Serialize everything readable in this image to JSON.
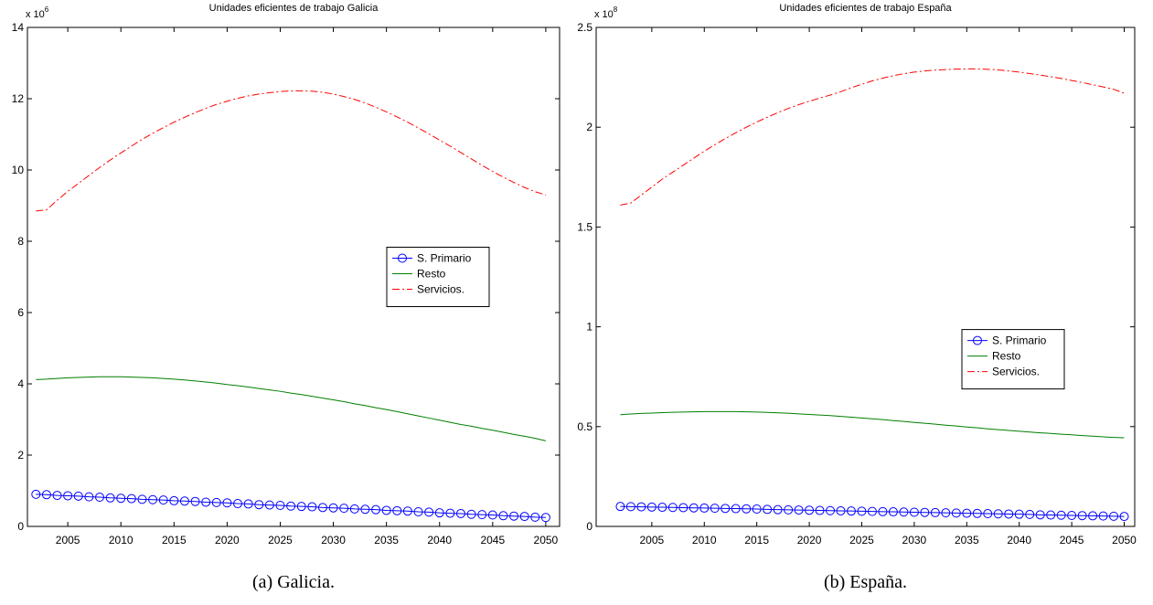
{
  "chart_data": [
    {
      "type": "line",
      "title": "Unidades eficientes de trabajo Galicia",
      "caption": "(a) Galicia.",
      "scale_base": "x 10",
      "scale_exponent": "6",
      "x": [
        2002,
        2003,
        2004,
        2005,
        2006,
        2007,
        2008,
        2009,
        2010,
        2011,
        2012,
        2013,
        2014,
        2015,
        2016,
        2017,
        2018,
        2019,
        2020,
        2021,
        2022,
        2023,
        2024,
        2025,
        2026,
        2027,
        2028,
        2029,
        2030,
        2031,
        2032,
        2033,
        2034,
        2035,
        2036,
        2037,
        2038,
        2039,
        2040,
        2041,
        2042,
        2043,
        2044,
        2045,
        2046,
        2047,
        2048,
        2049,
        2050
      ],
      "xlim": [
        2001.2,
        2051.3
      ],
      "xticks": [
        2005,
        2010,
        2015,
        2020,
        2025,
        2030,
        2035,
        2040,
        2045,
        2050
      ],
      "ylim": [
        0,
        14
      ],
      "yticks": [
        0,
        2,
        4,
        6,
        8,
        10,
        12,
        14
      ],
      "legend_position": "center right",
      "series": [
        {
          "name": "S. Primario",
          "color": "#0000ff",
          "marker": "o",
          "line_style": "solid",
          "values": [
            0.9,
            0.89,
            0.87,
            0.86,
            0.85,
            0.83,
            0.82,
            0.8,
            0.79,
            0.78,
            0.76,
            0.75,
            0.74,
            0.72,
            0.71,
            0.7,
            0.68,
            0.67,
            0.66,
            0.64,
            0.63,
            0.61,
            0.6,
            0.59,
            0.57,
            0.56,
            0.55,
            0.53,
            0.52,
            0.51,
            0.49,
            0.48,
            0.47,
            0.45,
            0.44,
            0.43,
            0.41,
            0.4,
            0.38,
            0.37,
            0.36,
            0.34,
            0.33,
            0.32,
            0.3,
            0.29,
            0.28,
            0.26,
            0.25
          ]
        },
        {
          "name": "Resto",
          "color": "#007f00",
          "marker": "none",
          "line_style": "solid",
          "values": [
            4.12,
            4.13,
            4.15,
            4.17,
            4.18,
            4.19,
            4.2,
            4.2,
            4.2,
            4.19,
            4.18,
            4.17,
            4.15,
            4.13,
            4.11,
            4.08,
            4.05,
            4.02,
            3.98,
            3.95,
            3.91,
            3.87,
            3.83,
            3.79,
            3.74,
            3.7,
            3.65,
            3.6,
            3.55,
            3.5,
            3.44,
            3.39,
            3.33,
            3.28,
            3.22,
            3.16,
            3.1,
            3.04,
            2.98,
            2.92,
            2.86,
            2.81,
            2.75,
            2.7,
            2.64,
            2.58,
            2.53,
            2.47,
            2.4
          ]
        },
        {
          "name": "Servicios.",
          "color": "#ff0000",
          "marker": "none",
          "line_style": "dash-dot",
          "values": [
            8.85,
            8.88,
            9.15,
            9.4,
            9.62,
            9.85,
            10.07,
            10.28,
            10.48,
            10.67,
            10.86,
            11.03,
            11.19,
            11.34,
            11.48,
            11.61,
            11.73,
            11.84,
            11.93,
            12.01,
            12.08,
            12.13,
            12.17,
            12.2,
            12.22,
            12.22,
            12.21,
            12.18,
            12.13,
            12.06,
            11.98,
            11.88,
            11.76,
            11.63,
            11.49,
            11.34,
            11.18,
            11.01,
            10.84,
            10.67,
            10.49,
            10.31,
            10.13,
            9.96,
            9.8,
            9.65,
            9.51,
            9.39,
            9.3
          ]
        }
      ]
    },
    {
      "type": "line",
      "title": "Unidades eficientes de trabajo España",
      "caption": "(b) España.",
      "scale_base": "x 10",
      "scale_exponent": "8",
      "x": [
        2002,
        2003,
        2004,
        2005,
        2006,
        2007,
        2008,
        2009,
        2010,
        2011,
        2012,
        2013,
        2014,
        2015,
        2016,
        2017,
        2018,
        2019,
        2020,
        2021,
        2022,
        2023,
        2024,
        2025,
        2026,
        2027,
        2028,
        2029,
        2030,
        2031,
        2032,
        2033,
        2034,
        2035,
        2036,
        2037,
        2038,
        2039,
        2040,
        2041,
        2042,
        2043,
        2044,
        2045,
        2046,
        2047,
        2048,
        2049,
        2050
      ],
      "xlim": [
        1999.7,
        2051
      ],
      "xticks": [
        2005,
        2010,
        2015,
        2020,
        2025,
        2030,
        2035,
        2040,
        2045,
        2050
      ],
      "ylim": [
        0,
        2.5
      ],
      "yticks": [
        0,
        0.5,
        1,
        1.5,
        2,
        2.5
      ],
      "legend_position": "lower right",
      "series": [
        {
          "name": "S. Primario",
          "color": "#0000ff",
          "marker": "o",
          "line_style": "solid",
          "values": [
            0.1,
            0.099,
            0.098,
            0.097,
            0.096,
            0.095,
            0.094,
            0.093,
            0.092,
            0.091,
            0.09,
            0.089,
            0.088,
            0.087,
            0.085,
            0.084,
            0.083,
            0.082,
            0.081,
            0.08,
            0.079,
            0.078,
            0.077,
            0.076,
            0.075,
            0.074,
            0.073,
            0.072,
            0.071,
            0.07,
            0.069,
            0.068,
            0.067,
            0.066,
            0.065,
            0.064,
            0.063,
            0.062,
            0.061,
            0.06,
            0.058,
            0.057,
            0.056,
            0.055,
            0.054,
            0.053,
            0.052,
            0.051,
            0.05
          ]
        },
        {
          "name": "Resto",
          "color": "#007f00",
          "marker": "none",
          "line_style": "solid",
          "values": [
            0.56,
            0.563,
            0.566,
            0.568,
            0.57,
            0.572,
            0.573,
            0.574,
            0.575,
            0.575,
            0.575,
            0.575,
            0.574,
            0.573,
            0.571,
            0.569,
            0.567,
            0.564,
            0.561,
            0.558,
            0.555,
            0.551,
            0.547,
            0.543,
            0.539,
            0.535,
            0.53,
            0.526,
            0.521,
            0.517,
            0.512,
            0.507,
            0.503,
            0.498,
            0.494,
            0.489,
            0.485,
            0.481,
            0.477,
            0.473,
            0.469,
            0.466,
            0.462,
            0.459,
            0.455,
            0.452,
            0.449,
            0.446,
            0.444
          ]
        },
        {
          "name": "Servicios.",
          "color": "#ff0000",
          "marker": "none",
          "line_style": "dash-dot",
          "values": [
            1.61,
            1.62,
            1.66,
            1.7,
            1.74,
            1.775,
            1.81,
            1.845,
            1.88,
            1.912,
            1.943,
            1.972,
            2.0,
            2.026,
            2.05,
            2.073,
            2.094,
            2.113,
            2.13,
            2.146,
            2.161,
            2.178,
            2.198,
            2.215,
            2.232,
            2.246,
            2.258,
            2.268,
            2.276,
            2.282,
            2.286,
            2.289,
            2.291,
            2.292,
            2.292,
            2.29,
            2.287,
            2.282,
            2.276,
            2.269,
            2.261,
            2.253,
            2.244,
            2.234,
            2.224,
            2.213,
            2.202,
            2.19,
            2.17
          ]
        }
      ]
    }
  ]
}
